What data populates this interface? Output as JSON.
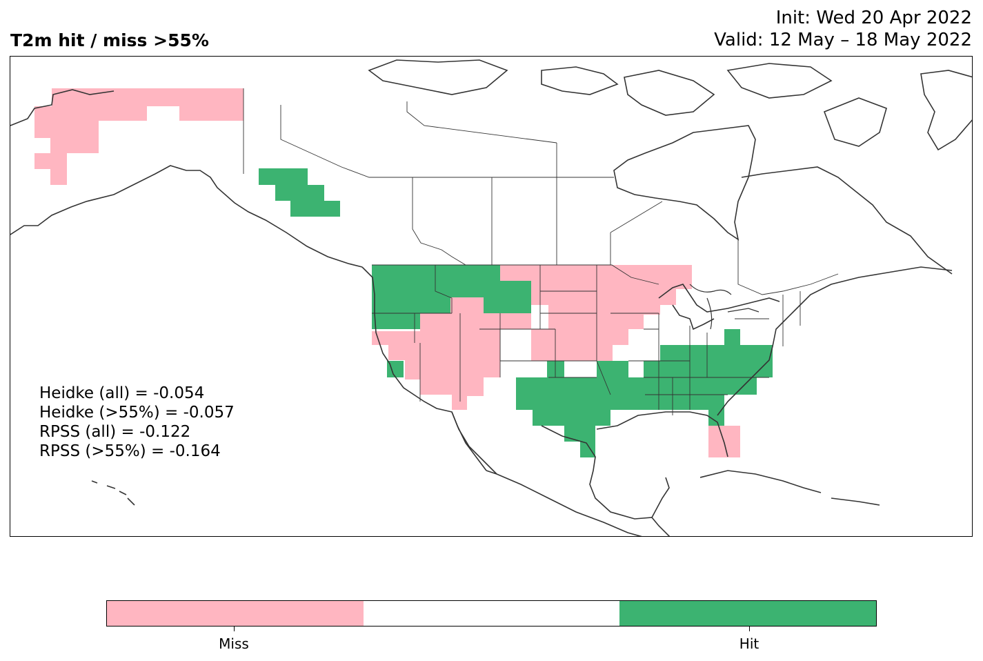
{
  "title": {
    "left": "T2m hit / miss  >55%",
    "init": "Init: Wed 20 Apr 2022",
    "valid": "Valid: 12 May – 18 May 2022"
  },
  "scores": [
    "Heidke (all) = -0.054",
    "Heidke (>55%) = -0.057",
    "RPSS (all) = -0.122",
    "RPSS (>55%) = -0.164"
  ],
  "colors": {
    "miss": "#ffb6c1",
    "neutral": "#ffffff",
    "hit": "#3cb371",
    "coast": "#333333"
  },
  "legend": {
    "categories": [
      {
        "label": "Miss",
        "color": "#ffb6c1"
      },
      {
        "label": "",
        "color": "#ffffff"
      },
      {
        "label": "Hit",
        "color": "#3cb371"
      }
    ]
  }
}
